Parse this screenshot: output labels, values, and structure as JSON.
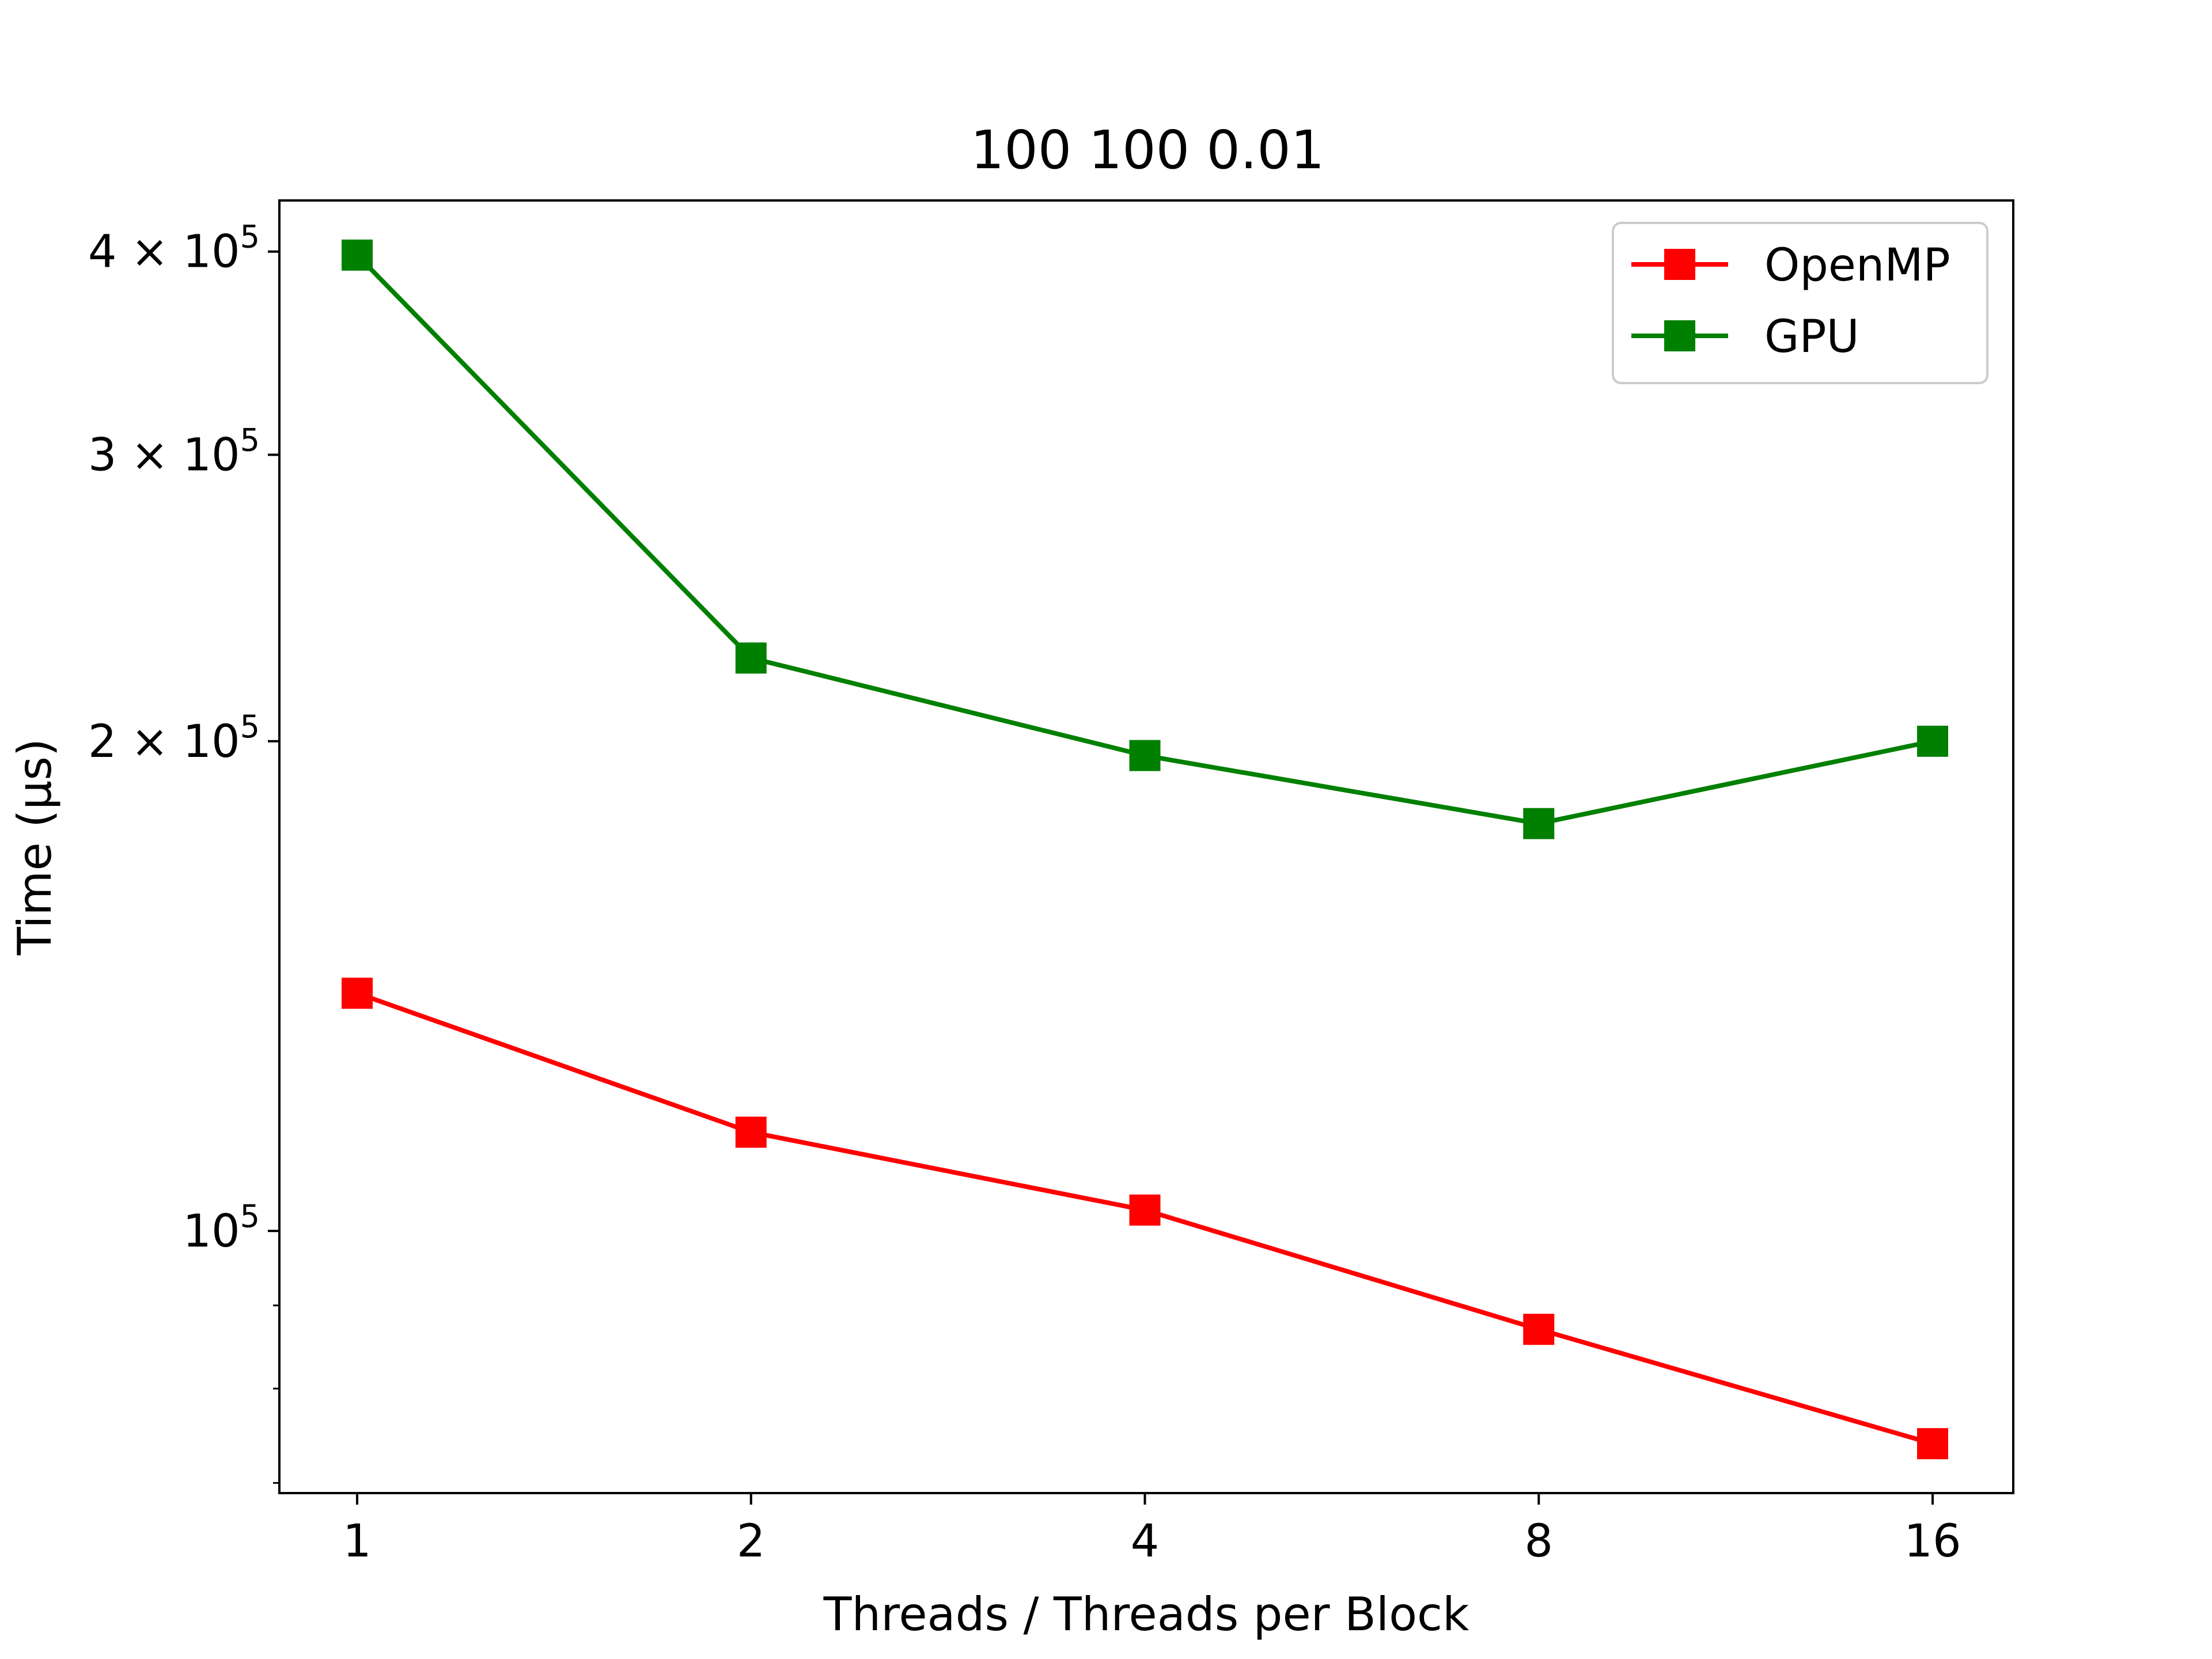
{
  "chart_data": {
    "type": "line",
    "title": "100 100 0.01",
    "xlabel": "Threads / Threads per Block",
    "ylabel": "Time (µs)",
    "x_scale": "log2",
    "y_scale": "log",
    "x": [
      1,
      2,
      4,
      8,
      16
    ],
    "x_tick_labels": [
      "1",
      "2",
      "4",
      "8",
      "16"
    ],
    "y_ticks": [
      {
        "value": 100000,
        "base": "10",
        "exp": "5"
      },
      {
        "value": 200000,
        "base": "2 × 10",
        "exp": "5"
      },
      {
        "value": 300000,
        "base": "3 × 10",
        "exp": "5"
      },
      {
        "value": 400000,
        "base": "4 × 10",
        "exp": "5"
      }
    ],
    "ylim": [
      69000,
      430000
    ],
    "grid": false,
    "legend_position": "top-right",
    "series": [
      {
        "name": "OpenMP",
        "color": "#ff0000",
        "marker": "square",
        "values": [
          140000,
          115000,
          103000,
          87000,
          74000
        ]
      },
      {
        "name": "GPU",
        "color": "#008000",
        "marker": "square",
        "values": [
          398000,
          225000,
          196000,
          178000,
          200000
        ]
      }
    ]
  }
}
